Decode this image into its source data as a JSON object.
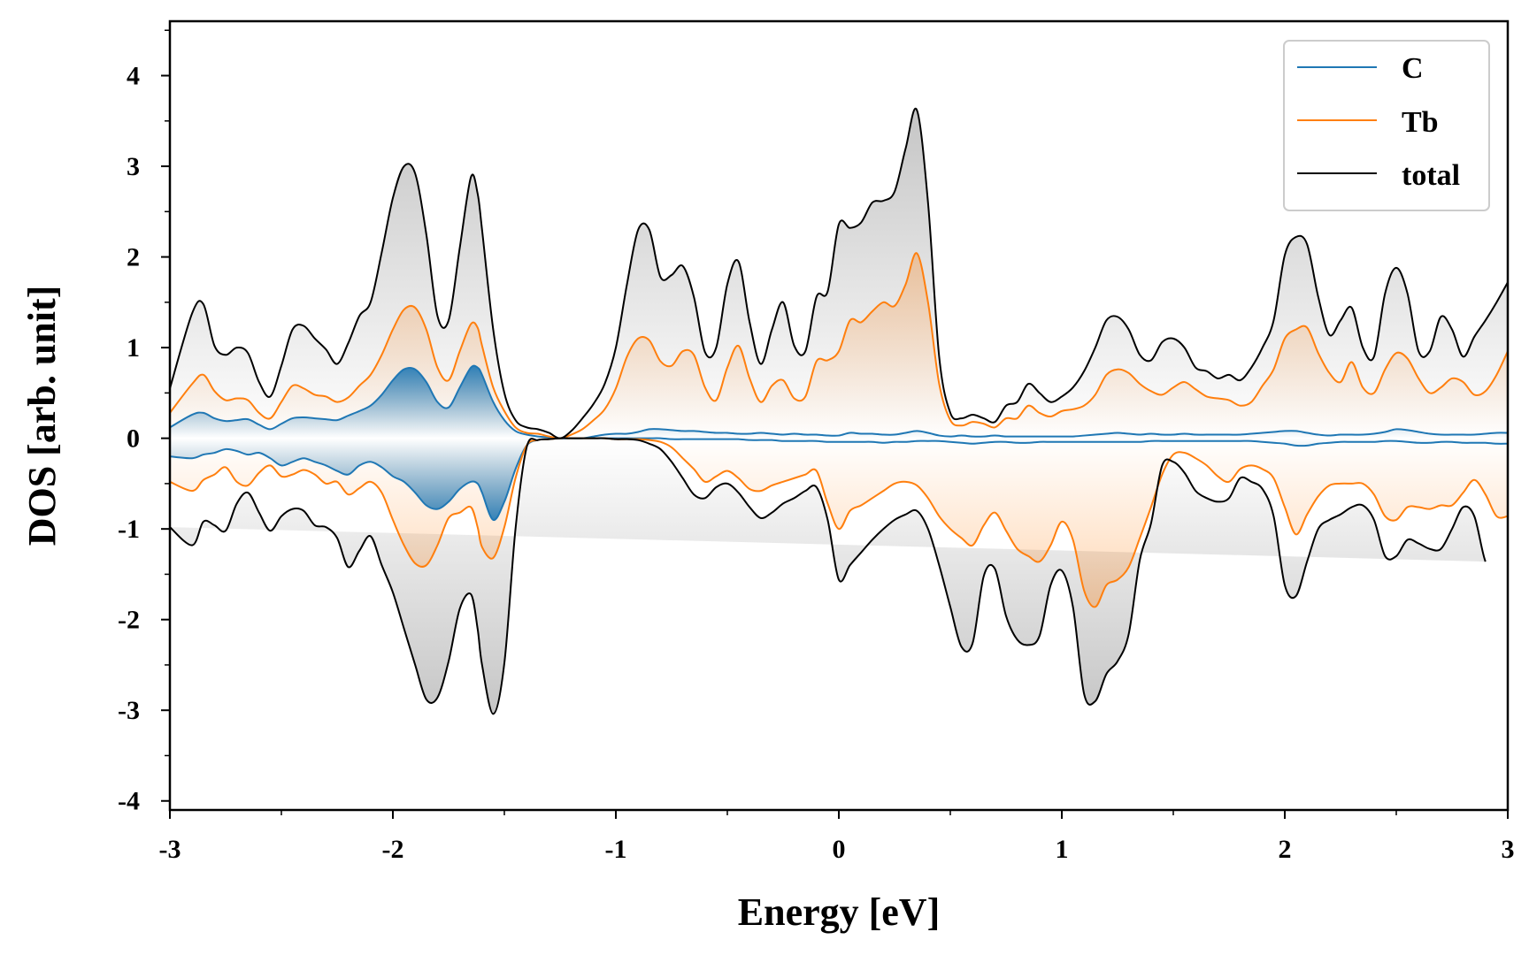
{
  "chart_data": {
    "type": "line",
    "title": "",
    "xlabel": "Energy [eV]",
    "ylabel": "DOS [arb. unit]",
    "xlim": [
      -3,
      3
    ],
    "ylim": [
      -4.1,
      4.6
    ],
    "x_ticks": [
      -3,
      -2,
      -1,
      0,
      1,
      2,
      3
    ],
    "x_tick_labels": [
      "-3",
      "-2",
      "-1",
      "0",
      "1",
      "2",
      "3"
    ],
    "y_ticks": [
      -4,
      -3,
      -2,
      -1,
      0,
      1,
      2,
      3,
      4
    ],
    "y_tick_labels": [
      "-4",
      "-3",
      "-2",
      "-1",
      "0",
      "1",
      "2",
      "3",
      "4"
    ],
    "grid": false,
    "legend_position": "top-right",
    "colors": {
      "C": "#1f77b4",
      "Tb": "#ff7f0e",
      "total": "#000000"
    },
    "x": [
      -3.0,
      -2.9,
      -2.85,
      -2.8,
      -2.75,
      -2.7,
      -2.65,
      -2.6,
      -2.55,
      -2.5,
      -2.45,
      -2.4,
      -2.35,
      -2.3,
      -2.25,
      -2.2,
      -2.15,
      -2.1,
      -2.05,
      -2.0,
      -1.95,
      -1.9,
      -1.85,
      -1.8,
      -1.75,
      -1.7,
      -1.65,
      -1.62,
      -1.6,
      -1.55,
      -1.5,
      -1.45,
      -1.4,
      -1.35,
      -1.3,
      -1.25,
      -1.2,
      -1.15,
      -1.1,
      -1.05,
      -1.0,
      -0.95,
      -0.9,
      -0.85,
      -0.8,
      -0.75,
      -0.7,
      -0.65,
      -0.6,
      -0.55,
      -0.5,
      -0.45,
      -0.4,
      -0.35,
      -0.3,
      -0.25,
      -0.2,
      -0.15,
      -0.1,
      -0.05,
      0.0,
      0.05,
      0.1,
      0.15,
      0.2,
      0.25,
      0.3,
      0.35,
      0.4,
      0.45,
      0.5,
      0.55,
      0.6,
      0.65,
      0.7,
      0.75,
      0.8,
      0.85,
      0.9,
      0.95,
      1.0,
      1.05,
      1.1,
      1.15,
      1.2,
      1.25,
      1.3,
      1.35,
      1.4,
      1.45,
      1.5,
      1.55,
      1.6,
      1.65,
      1.7,
      1.75,
      1.8,
      1.85,
      1.9,
      1.95,
      2.0,
      2.05,
      2.1,
      2.15,
      2.2,
      2.25,
      2.3,
      2.35,
      2.4,
      2.45,
      2.5,
      2.55,
      2.6,
      2.65,
      2.7,
      2.75,
      2.8,
      2.85,
      2.9,
      2.95,
      3.0
    ],
    "series": [
      {
        "name": "C",
        "up": [
          0.12,
          0.26,
          0.28,
          0.22,
          0.19,
          0.2,
          0.21,
          0.15,
          0.1,
          0.16,
          0.22,
          0.23,
          0.22,
          0.21,
          0.2,
          0.25,
          0.3,
          0.36,
          0.48,
          0.64,
          0.76,
          0.76,
          0.62,
          0.4,
          0.34,
          0.56,
          0.78,
          0.78,
          0.7,
          0.4,
          0.2,
          0.08,
          0.04,
          0.02,
          0.01,
          0.0,
          0.0,
          0.0,
          0.02,
          0.04,
          0.05,
          0.05,
          0.07,
          0.1,
          0.1,
          0.09,
          0.08,
          0.08,
          0.07,
          0.06,
          0.06,
          0.05,
          0.05,
          0.06,
          0.05,
          0.04,
          0.05,
          0.04,
          0.04,
          0.03,
          0.03,
          0.06,
          0.05,
          0.05,
          0.04,
          0.04,
          0.06,
          0.08,
          0.06,
          0.03,
          0.02,
          0.03,
          0.02,
          0.02,
          0.03,
          0.02,
          0.02,
          0.02,
          0.02,
          0.02,
          0.02,
          0.02,
          0.03,
          0.04,
          0.05,
          0.06,
          0.05,
          0.04,
          0.05,
          0.04,
          0.04,
          0.05,
          0.04,
          0.04,
          0.04,
          0.04,
          0.04,
          0.05,
          0.06,
          0.07,
          0.08,
          0.08,
          0.06,
          0.04,
          0.03,
          0.04,
          0.04,
          0.04,
          0.05,
          0.07,
          0.1,
          0.09,
          0.07,
          0.05,
          0.04,
          0.04,
          0.04,
          0.04,
          0.05,
          0.06,
          0.06
        ],
        "down": [
          -0.2,
          -0.22,
          -0.18,
          -0.16,
          -0.12,
          -0.14,
          -0.18,
          -0.16,
          -0.22,
          -0.3,
          -0.26,
          -0.22,
          -0.26,
          -0.3,
          -0.36,
          -0.4,
          -0.3,
          -0.26,
          -0.32,
          -0.42,
          -0.48,
          -0.6,
          -0.74,
          -0.78,
          -0.7,
          -0.56,
          -0.48,
          -0.5,
          -0.6,
          -0.9,
          -0.7,
          -0.34,
          -0.08,
          -0.02,
          -0.01,
          0.0,
          0.0,
          0.0,
          -0.0,
          -0.0,
          -0.0,
          -0.0,
          -0.0,
          -0.0,
          -0.0,
          -0.01,
          -0.01,
          -0.01,
          -0.01,
          -0.01,
          -0.01,
          -0.01,
          -0.02,
          -0.02,
          -0.02,
          -0.03,
          -0.03,
          -0.03,
          -0.03,
          -0.04,
          -0.04,
          -0.04,
          -0.04,
          -0.04,
          -0.05,
          -0.04,
          -0.04,
          -0.03,
          -0.03,
          -0.03,
          -0.04,
          -0.05,
          -0.06,
          -0.05,
          -0.04,
          -0.04,
          -0.05,
          -0.05,
          -0.04,
          -0.04,
          -0.04,
          -0.04,
          -0.04,
          -0.04,
          -0.04,
          -0.04,
          -0.04,
          -0.04,
          -0.03,
          -0.03,
          -0.03,
          -0.03,
          -0.03,
          -0.03,
          -0.03,
          -0.03,
          -0.03,
          -0.03,
          -0.04,
          -0.05,
          -0.06,
          -0.08,
          -0.08,
          -0.06,
          -0.05,
          -0.04,
          -0.04,
          -0.04,
          -0.04,
          -0.03,
          -0.03,
          -0.04,
          -0.05,
          -0.05,
          -0.04,
          -0.04,
          -0.05,
          -0.05,
          -0.05,
          -0.06,
          -0.06
        ]
      },
      {
        "name": "Tb",
        "up": [
          0.28,
          0.6,
          0.7,
          0.52,
          0.42,
          0.44,
          0.42,
          0.28,
          0.22,
          0.4,
          0.58,
          0.55,
          0.48,
          0.46,
          0.4,
          0.45,
          0.58,
          0.7,
          0.92,
          1.2,
          1.42,
          1.44,
          1.2,
          0.78,
          0.64,
          0.96,
          1.26,
          1.22,
          1.02,
          0.56,
          0.3,
          0.12,
          0.06,
          0.05,
          0.02,
          0.0,
          0.04,
          0.1,
          0.2,
          0.32,
          0.55,
          0.9,
          1.1,
          1.08,
          0.85,
          0.8,
          0.96,
          0.92,
          0.56,
          0.42,
          0.78,
          1.02,
          0.66,
          0.4,
          0.58,
          0.64,
          0.44,
          0.46,
          0.85,
          0.86,
          0.96,
          1.3,
          1.28,
          1.4,
          1.5,
          1.46,
          1.7,
          2.04,
          1.5,
          0.6,
          0.2,
          0.14,
          0.18,
          0.16,
          0.12,
          0.22,
          0.22,
          0.36,
          0.28,
          0.24,
          0.3,
          0.32,
          0.36,
          0.48,
          0.7,
          0.76,
          0.72,
          0.6,
          0.52,
          0.48,
          0.56,
          0.62,
          0.54,
          0.46,
          0.44,
          0.42,
          0.36,
          0.4,
          0.58,
          0.76,
          1.1,
          1.2,
          1.22,
          0.94,
          0.72,
          0.62,
          0.84,
          0.56,
          0.5,
          0.76,
          0.94,
          0.88,
          0.66,
          0.5,
          0.56,
          0.66,
          0.62,
          0.48,
          0.52,
          0.7,
          0.96
        ],
        "down": [
          -0.48,
          -0.58,
          -0.46,
          -0.4,
          -0.32,
          -0.48,
          -0.52,
          -0.38,
          -0.3,
          -0.42,
          -0.4,
          -0.35,
          -0.4,
          -0.5,
          -0.48,
          -0.62,
          -0.55,
          -0.48,
          -0.6,
          -0.9,
          -1.18,
          -1.38,
          -1.4,
          -1.18,
          -0.88,
          -0.82,
          -0.76,
          -0.98,
          -1.2,
          -1.32,
          -0.98,
          -0.44,
          -0.08,
          -0.02,
          -0.01,
          0.0,
          0.0,
          0.0,
          -0.0,
          -0.0,
          -0.01,
          -0.01,
          -0.01,
          -0.02,
          -0.04,
          -0.1,
          -0.22,
          -0.34,
          -0.48,
          -0.42,
          -0.36,
          -0.44,
          -0.56,
          -0.58,
          -0.52,
          -0.48,
          -0.44,
          -0.4,
          -0.36,
          -0.72,
          -1.0,
          -0.8,
          -0.74,
          -0.66,
          -0.58,
          -0.5,
          -0.48,
          -0.52,
          -0.66,
          -0.86,
          -1.0,
          -1.1,
          -1.18,
          -0.96,
          -0.82,
          -1.02,
          -1.22,
          -1.3,
          -1.36,
          -1.18,
          -0.92,
          -1.12,
          -1.68,
          -1.86,
          -1.62,
          -1.56,
          -1.42,
          -1.1,
          -0.76,
          -0.4,
          -0.18,
          -0.16,
          -0.22,
          -0.3,
          -0.42,
          -0.48,
          -0.34,
          -0.3,
          -0.34,
          -0.44,
          -0.76,
          -1.06,
          -0.84,
          -0.64,
          -0.52,
          -0.5,
          -0.5,
          -0.5,
          -0.62,
          -0.86,
          -0.9,
          -0.76,
          -0.76,
          -0.78,
          -0.74,
          -0.74,
          -0.6,
          -0.46,
          -0.62,
          -0.86,
          -0.86
        ]
      },
      {
        "name": "total",
        "up": [
          0.55,
          1.38,
          1.48,
          1.02,
          0.92,
          1.0,
          0.94,
          0.62,
          0.46,
          0.8,
          1.2,
          1.24,
          1.1,
          0.98,
          0.82,
          1.05,
          1.35,
          1.5,
          2.05,
          2.65,
          3.0,
          2.92,
          2.25,
          1.35,
          1.3,
          2.1,
          2.88,
          2.7,
          2.3,
          1.2,
          0.5,
          0.2,
          0.12,
          0.1,
          0.06,
          0.0,
          0.08,
          0.22,
          0.38,
          0.6,
          1.0,
          1.7,
          2.3,
          2.3,
          1.78,
          1.8,
          1.9,
          1.56,
          0.95,
          1.0,
          1.7,
          1.95,
          1.28,
          0.82,
          1.2,
          1.5,
          1.02,
          0.96,
          1.56,
          1.62,
          2.36,
          2.32,
          2.38,
          2.6,
          2.62,
          2.72,
          3.2,
          3.62,
          2.6,
          0.9,
          0.28,
          0.22,
          0.26,
          0.22,
          0.18,
          0.36,
          0.4,
          0.6,
          0.5,
          0.4,
          0.46,
          0.56,
          0.74,
          1.0,
          1.3,
          1.34,
          1.2,
          0.92,
          0.86,
          1.06,
          1.1,
          1.0,
          0.78,
          0.74,
          0.66,
          0.7,
          0.64,
          0.78,
          1.0,
          1.3,
          2.02,
          2.22,
          2.14,
          1.56,
          1.14,
          1.3,
          1.44,
          1.0,
          0.9,
          1.6,
          1.88,
          1.6,
          0.96,
          0.96,
          1.34,
          1.2,
          0.9,
          1.12,
          1.3,
          1.5,
          1.72
        ],
        "down": [
          -0.98,
          -1.18,
          -0.92,
          -0.96,
          -1.02,
          -0.72,
          -0.6,
          -0.82,
          -1.02,
          -0.86,
          -0.78,
          -0.8,
          -0.96,
          -0.98,
          -1.1,
          -1.42,
          -1.24,
          -1.08,
          -1.4,
          -1.7,
          -2.1,
          -2.5,
          -2.88,
          -2.86,
          -2.46,
          -1.88,
          -1.72,
          -2.1,
          -2.5,
          -3.04,
          -2.48,
          -1.0,
          -0.1,
          -0.02,
          -0.01,
          0.0,
          0.0,
          0.0,
          -0.0,
          -0.0,
          -0.01,
          -0.01,
          -0.02,
          -0.06,
          -0.12,
          -0.26,
          -0.44,
          -0.62,
          -0.66,
          -0.54,
          -0.5,
          -0.6,
          -0.76,
          -0.88,
          -0.82,
          -0.72,
          -0.66,
          -0.58,
          -0.54,
          -0.9,
          -1.56,
          -1.4,
          -1.26,
          -1.12,
          -1.0,
          -0.9,
          -0.84,
          -0.8,
          -1.0,
          -1.4,
          -1.86,
          -2.3,
          -2.26,
          -1.52,
          -1.44,
          -1.96,
          -2.22,
          -2.28,
          -2.18,
          -1.62,
          -1.46,
          -1.86,
          -2.82,
          -2.9,
          -2.6,
          -2.46,
          -2.16,
          -1.34,
          -0.94,
          -0.3,
          -0.26,
          -0.38,
          -0.58,
          -0.66,
          -0.7,
          -0.66,
          -0.44,
          -0.48,
          -0.56,
          -0.86,
          -1.62,
          -1.74,
          -1.36,
          -1.0,
          -0.9,
          -0.84,
          -0.76,
          -0.74,
          -0.9,
          -1.3,
          -1.3,
          -1.12,
          -1.16,
          -1.22,
          -1.22,
          -1.0,
          -0.76,
          -0.86,
          -1.36,
          -1.48
        ]
      }
    ]
  }
}
